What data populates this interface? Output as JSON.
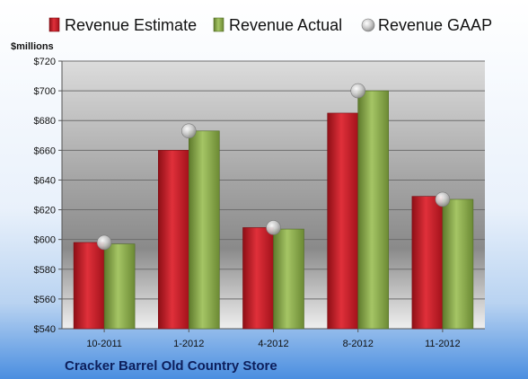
{
  "chart_data": {
    "type": "bar",
    "title": "",
    "footer": "Cracker Barrel Old Country Store",
    "ylabel": "$millions",
    "categories": [
      "10-2011",
      "1-2012",
      "4-2012",
      "8-2012",
      "11-2012"
    ],
    "series": [
      {
        "name": "Revenue Estimate",
        "type": "bar",
        "color": "#cc1f2a",
        "values": [
          598,
          660,
          608,
          685,
          629
        ]
      },
      {
        "name": "Revenue Actual",
        "type": "bar",
        "color": "#8fb050",
        "values": [
          597,
          673,
          607,
          700,
          627
        ]
      },
      {
        "name": "Revenue GAAP",
        "type": "scatter",
        "color": "#c8c8c8",
        "values": [
          598,
          673,
          608,
          700,
          627
        ]
      }
    ],
    "yticks": [
      "$540",
      "$560",
      "$580",
      "$600",
      "$620",
      "$640",
      "$660",
      "$680",
      "$700",
      "$720"
    ],
    "ylim": [
      540,
      720
    ],
    "grid": true,
    "legend_position": "top"
  }
}
